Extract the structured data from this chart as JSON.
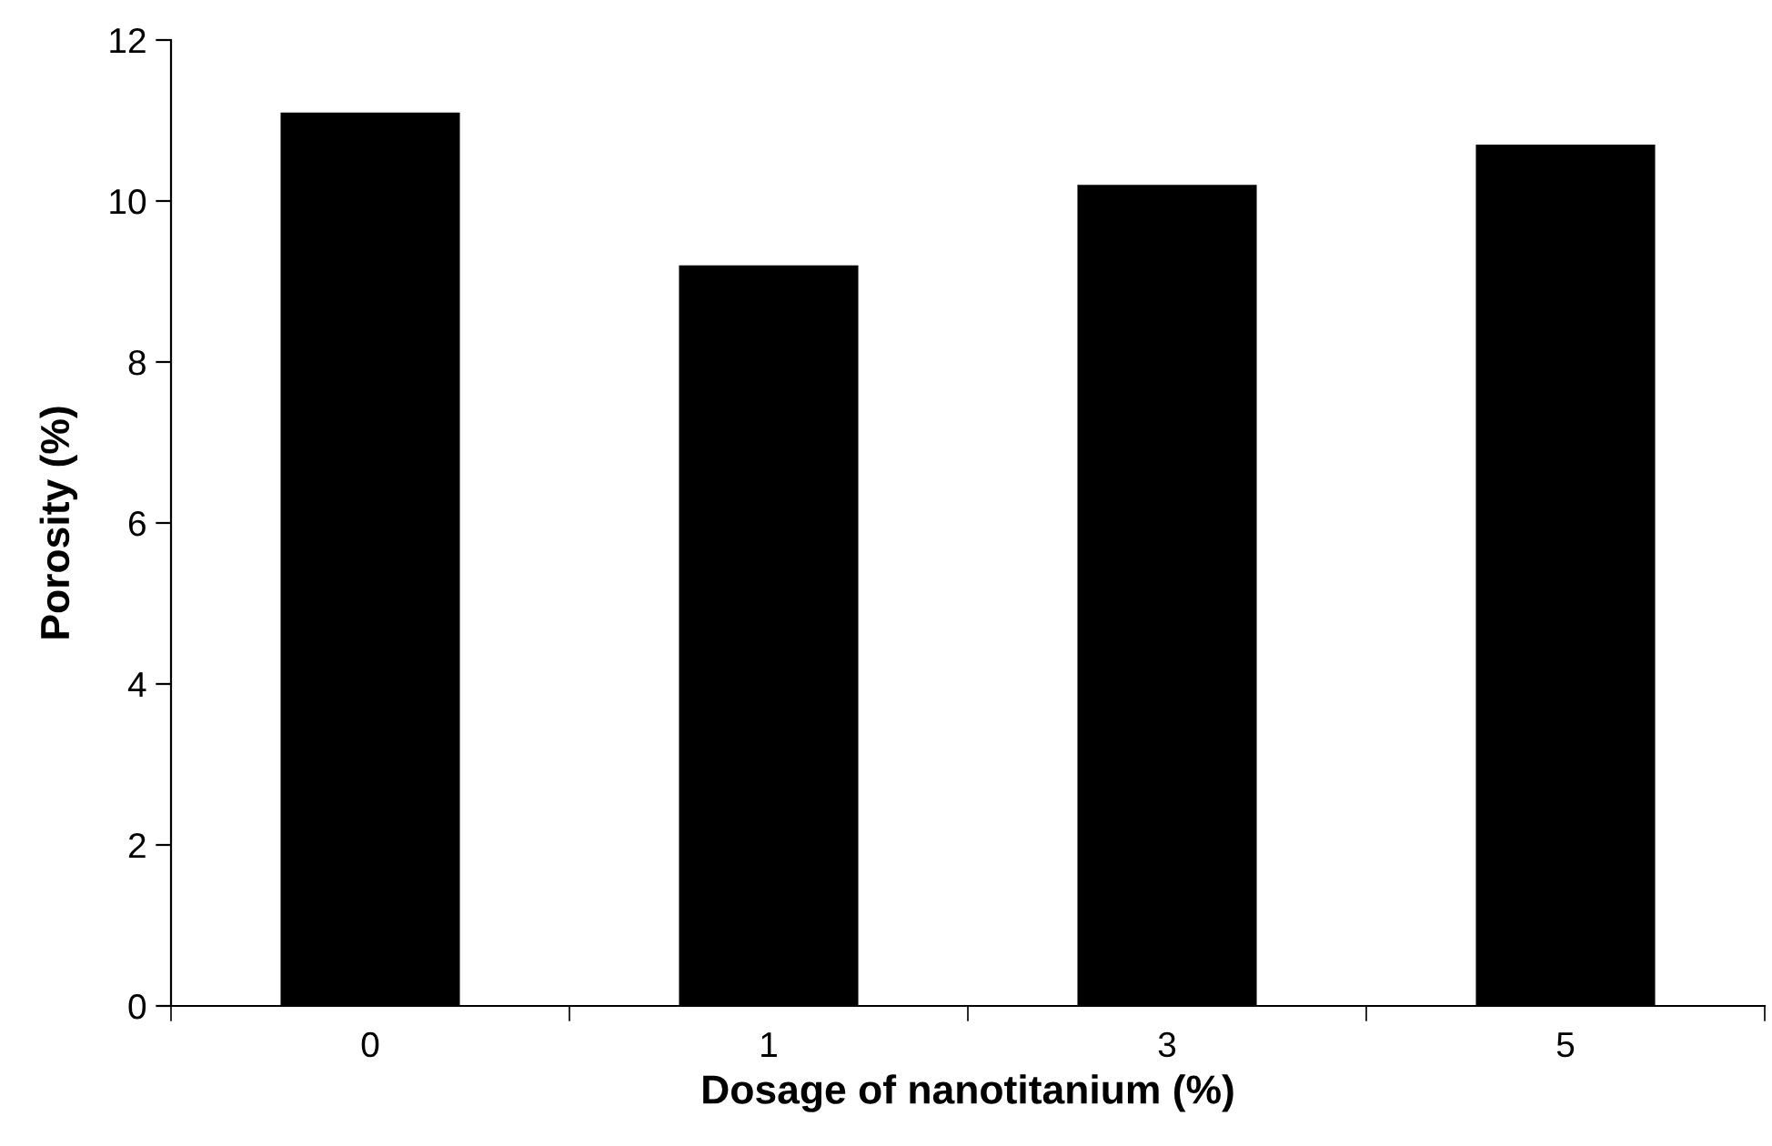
{
  "chart_data": {
    "type": "bar",
    "xlabel": "Dosage of nanotitanium (%)",
    "ylabel": "Porosity (%)",
    "categories": [
      "0",
      "1",
      "3",
      "5"
    ],
    "values": [
      11.1,
      9.2,
      10.2,
      10.7
    ],
    "color": "#000000",
    "ylim": [
      0,
      12
    ],
    "yticks": [
      0,
      2,
      4,
      6,
      8,
      10,
      12
    ],
    "grid": false,
    "legend": false
  }
}
